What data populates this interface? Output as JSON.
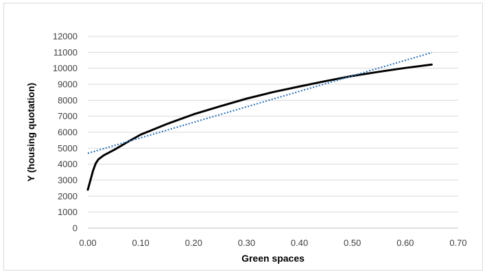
{
  "chart_data": {
    "type": "line",
    "title": "",
    "xlabel": "Green spaces",
    "ylabel": "Y (housing quotation)",
    "xlim": [
      0,
      0.7
    ],
    "ylim": [
      0,
      12000
    ],
    "x_ticks": [
      "0.00",
      "0.10",
      "0.20",
      "0.30",
      "0.40",
      "0.50",
      "0.60",
      "0.70"
    ],
    "y_ticks": [
      "0",
      "1000",
      "2000",
      "3000",
      "4000",
      "5000",
      "6000",
      "7000",
      "8000",
      "9000",
      "10000",
      "11000",
      "12000"
    ],
    "grid": "horizontal",
    "legend": "none",
    "series": [
      {
        "style": "solid",
        "color": "#000000",
        "points": [
          [
            0.0,
            2400
          ],
          [
            0.005,
            3000
          ],
          [
            0.01,
            3600
          ],
          [
            0.015,
            4050
          ],
          [
            0.02,
            4300
          ],
          [
            0.03,
            4550
          ],
          [
            0.05,
            4900
          ],
          [
            0.08,
            5480
          ],
          [
            0.1,
            5850
          ],
          [
            0.15,
            6520
          ],
          [
            0.2,
            7120
          ],
          [
            0.25,
            7620
          ],
          [
            0.3,
            8100
          ],
          [
            0.35,
            8510
          ],
          [
            0.4,
            8860
          ],
          [
            0.45,
            9200
          ],
          [
            0.5,
            9520
          ],
          [
            0.55,
            9780
          ],
          [
            0.6,
            10020
          ],
          [
            0.65,
            10230
          ]
        ]
      },
      {
        "style": "dotted",
        "color": "#2e75b6",
        "points": [
          [
            0.0,
            4680
          ],
          [
            0.65,
            10980
          ]
        ]
      }
    ]
  }
}
